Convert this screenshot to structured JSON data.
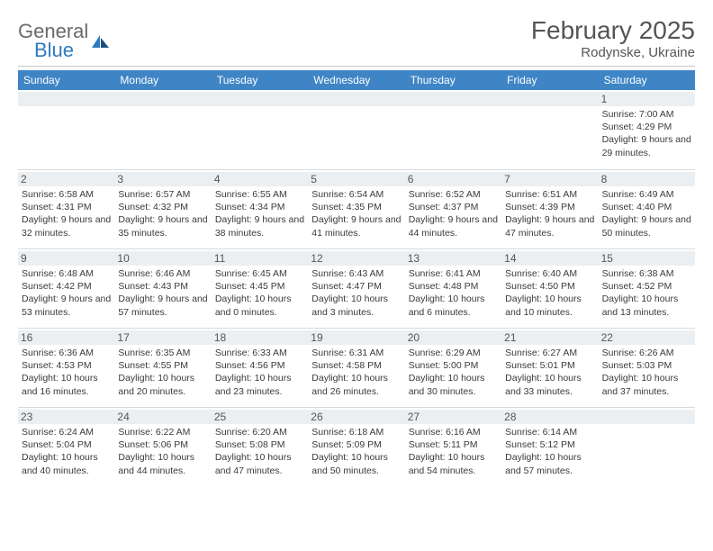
{
  "brand": {
    "word1": "General",
    "word2": "Blue"
  },
  "title": "February 2025",
  "location": "Rodynske, Ukraine",
  "colors": {
    "header_bg": "#3f85c6",
    "header_text": "#ffffff",
    "daynum_bg": "#eceff1",
    "border": "#d9d9d9",
    "brand_gray": "#6a6a6a",
    "brand_blue": "#2f7bbf"
  },
  "weekdays": [
    "Sunday",
    "Monday",
    "Tuesday",
    "Wednesday",
    "Thursday",
    "Friday",
    "Saturday"
  ],
  "layout": {
    "columns": 7,
    "rows": 5,
    "first_weekday_index": 6,
    "days_in_month": 28
  },
  "days": [
    {
      "n": 1,
      "sunrise": "7:00 AM",
      "sunset": "4:29 PM",
      "daylight": "9 hours and 29 minutes."
    },
    {
      "n": 2,
      "sunrise": "6:58 AM",
      "sunset": "4:31 PM",
      "daylight": "9 hours and 32 minutes."
    },
    {
      "n": 3,
      "sunrise": "6:57 AM",
      "sunset": "4:32 PM",
      "daylight": "9 hours and 35 minutes."
    },
    {
      "n": 4,
      "sunrise": "6:55 AM",
      "sunset": "4:34 PM",
      "daylight": "9 hours and 38 minutes."
    },
    {
      "n": 5,
      "sunrise": "6:54 AM",
      "sunset": "4:35 PM",
      "daylight": "9 hours and 41 minutes."
    },
    {
      "n": 6,
      "sunrise": "6:52 AM",
      "sunset": "4:37 PM",
      "daylight": "9 hours and 44 minutes."
    },
    {
      "n": 7,
      "sunrise": "6:51 AM",
      "sunset": "4:39 PM",
      "daylight": "9 hours and 47 minutes."
    },
    {
      "n": 8,
      "sunrise": "6:49 AM",
      "sunset": "4:40 PM",
      "daylight": "9 hours and 50 minutes."
    },
    {
      "n": 9,
      "sunrise": "6:48 AM",
      "sunset": "4:42 PM",
      "daylight": "9 hours and 53 minutes."
    },
    {
      "n": 10,
      "sunrise": "6:46 AM",
      "sunset": "4:43 PM",
      "daylight": "9 hours and 57 minutes."
    },
    {
      "n": 11,
      "sunrise": "6:45 AM",
      "sunset": "4:45 PM",
      "daylight": "10 hours and 0 minutes."
    },
    {
      "n": 12,
      "sunrise": "6:43 AM",
      "sunset": "4:47 PM",
      "daylight": "10 hours and 3 minutes."
    },
    {
      "n": 13,
      "sunrise": "6:41 AM",
      "sunset": "4:48 PM",
      "daylight": "10 hours and 6 minutes."
    },
    {
      "n": 14,
      "sunrise": "6:40 AM",
      "sunset": "4:50 PM",
      "daylight": "10 hours and 10 minutes."
    },
    {
      "n": 15,
      "sunrise": "6:38 AM",
      "sunset": "4:52 PM",
      "daylight": "10 hours and 13 minutes."
    },
    {
      "n": 16,
      "sunrise": "6:36 AM",
      "sunset": "4:53 PM",
      "daylight": "10 hours and 16 minutes."
    },
    {
      "n": 17,
      "sunrise": "6:35 AM",
      "sunset": "4:55 PM",
      "daylight": "10 hours and 20 minutes."
    },
    {
      "n": 18,
      "sunrise": "6:33 AM",
      "sunset": "4:56 PM",
      "daylight": "10 hours and 23 minutes."
    },
    {
      "n": 19,
      "sunrise": "6:31 AM",
      "sunset": "4:58 PM",
      "daylight": "10 hours and 26 minutes."
    },
    {
      "n": 20,
      "sunrise": "6:29 AM",
      "sunset": "5:00 PM",
      "daylight": "10 hours and 30 minutes."
    },
    {
      "n": 21,
      "sunrise": "6:27 AM",
      "sunset": "5:01 PM",
      "daylight": "10 hours and 33 minutes."
    },
    {
      "n": 22,
      "sunrise": "6:26 AM",
      "sunset": "5:03 PM",
      "daylight": "10 hours and 37 minutes."
    },
    {
      "n": 23,
      "sunrise": "6:24 AM",
      "sunset": "5:04 PM",
      "daylight": "10 hours and 40 minutes."
    },
    {
      "n": 24,
      "sunrise": "6:22 AM",
      "sunset": "5:06 PM",
      "daylight": "10 hours and 44 minutes."
    },
    {
      "n": 25,
      "sunrise": "6:20 AM",
      "sunset": "5:08 PM",
      "daylight": "10 hours and 47 minutes."
    },
    {
      "n": 26,
      "sunrise": "6:18 AM",
      "sunset": "5:09 PM",
      "daylight": "10 hours and 50 minutes."
    },
    {
      "n": 27,
      "sunrise": "6:16 AM",
      "sunset": "5:11 PM",
      "daylight": "10 hours and 54 minutes."
    },
    {
      "n": 28,
      "sunrise": "6:14 AM",
      "sunset": "5:12 PM",
      "daylight": "10 hours and 57 minutes."
    }
  ],
  "labels": {
    "sunrise": "Sunrise:",
    "sunset": "Sunset:",
    "daylight": "Daylight:"
  }
}
